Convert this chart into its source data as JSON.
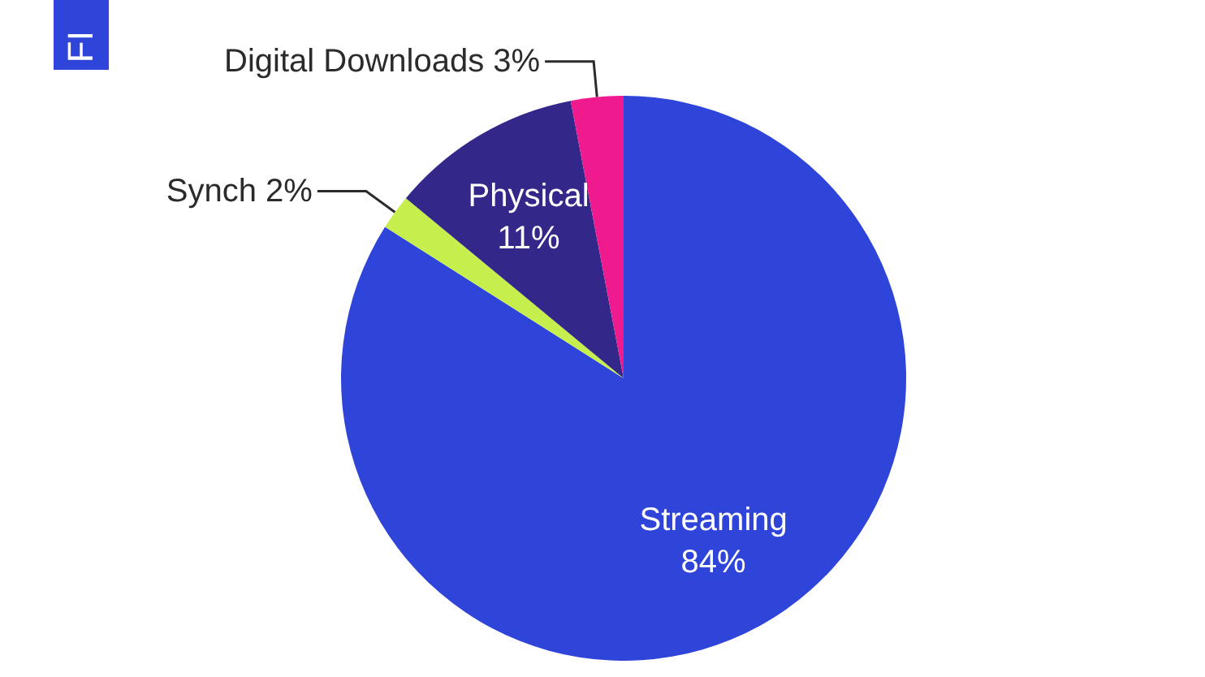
{
  "chart_data": {
    "type": "pie",
    "categories": [
      "Streaming",
      "Synch",
      "Physical",
      "Digital Downloads"
    ],
    "values": [
      84,
      2,
      11,
      3
    ],
    "colors": [
      "#2f44d8",
      "#c6ef4e",
      "#33278a",
      "#ee1a8e"
    ],
    "value_labels": [
      "84%",
      "2%",
      "11%",
      "3%"
    ],
    "annotations": [
      "FI"
    ]
  }
}
